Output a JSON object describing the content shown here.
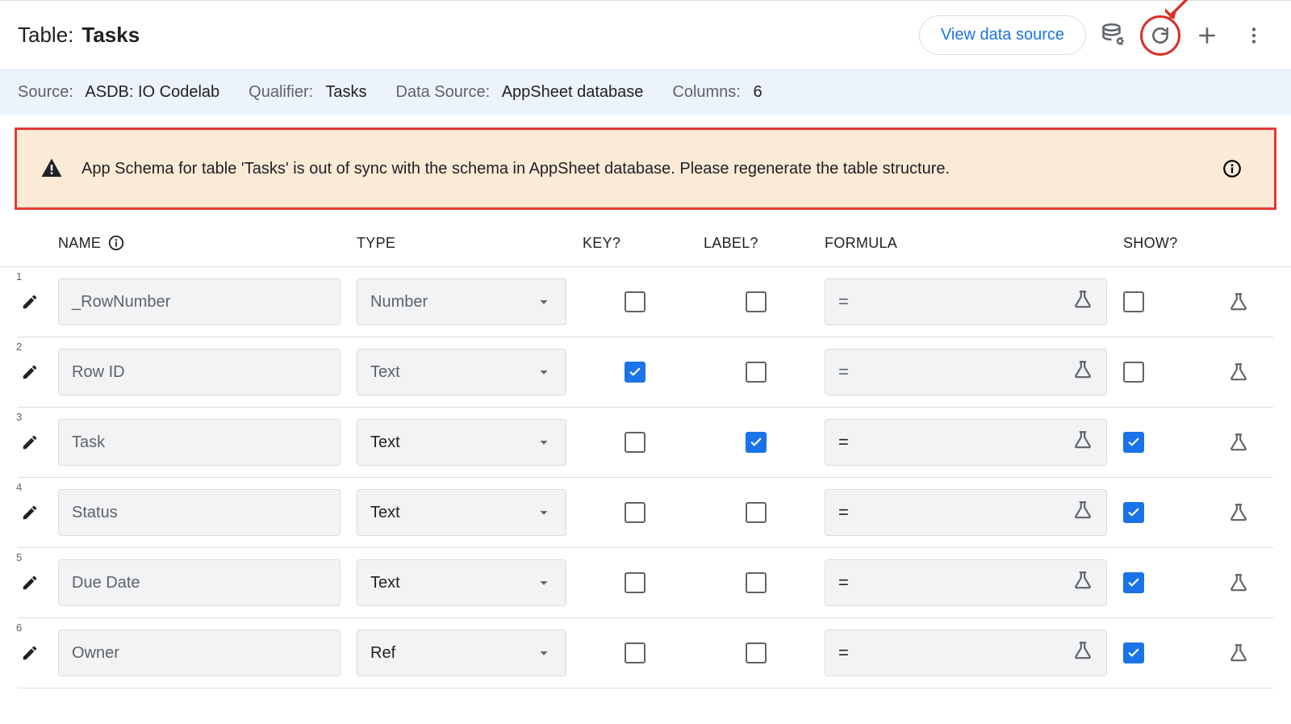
{
  "header": {
    "title_prefix": "Table:",
    "title_name": "Tasks",
    "view_source_label": "View data source"
  },
  "sub": {
    "source_label": "Source:",
    "source_value": "ASDB: IO Codelab",
    "qualifier_label": "Qualifier:",
    "qualifier_value": "Tasks",
    "datasource_label": "Data Source:",
    "datasource_value": "AppSheet database",
    "columns_label": "Columns:",
    "columns_value": "6"
  },
  "warning": {
    "message": "App Schema for table 'Tasks' is out of sync with the schema in AppSheet database. Please regenerate the table structure."
  },
  "thead": {
    "name": "NAME",
    "type": "TYPE",
    "key": "KEY?",
    "label": "LABEL?",
    "formula": "FORMULA",
    "show": "SHOW?"
  },
  "rows": [
    {
      "idx": "1",
      "name": "_RowNumber",
      "type": "Number",
      "type_dark": false,
      "key": false,
      "label": false,
      "formula_eq": "=",
      "formula_dark": false,
      "show": false
    },
    {
      "idx": "2",
      "name": "Row ID",
      "type": "Text",
      "type_dark": false,
      "key": true,
      "label": false,
      "formula_eq": "=",
      "formula_dark": false,
      "show": false
    },
    {
      "idx": "3",
      "name": "Task",
      "type": "Text",
      "type_dark": true,
      "key": false,
      "label": true,
      "formula_eq": "=",
      "formula_dark": true,
      "show": true
    },
    {
      "idx": "4",
      "name": "Status",
      "type": "Text",
      "type_dark": true,
      "key": false,
      "label": false,
      "formula_eq": "=",
      "formula_dark": true,
      "show": true
    },
    {
      "idx": "5",
      "name": "Due Date",
      "type": "Text",
      "type_dark": true,
      "key": false,
      "label": false,
      "formula_eq": "=",
      "formula_dark": true,
      "show": true
    },
    {
      "idx": "6",
      "name": "Owner",
      "type": "Ref",
      "type_dark": true,
      "key": false,
      "label": false,
      "formula_eq": "=",
      "formula_dark": true,
      "show": true
    }
  ]
}
